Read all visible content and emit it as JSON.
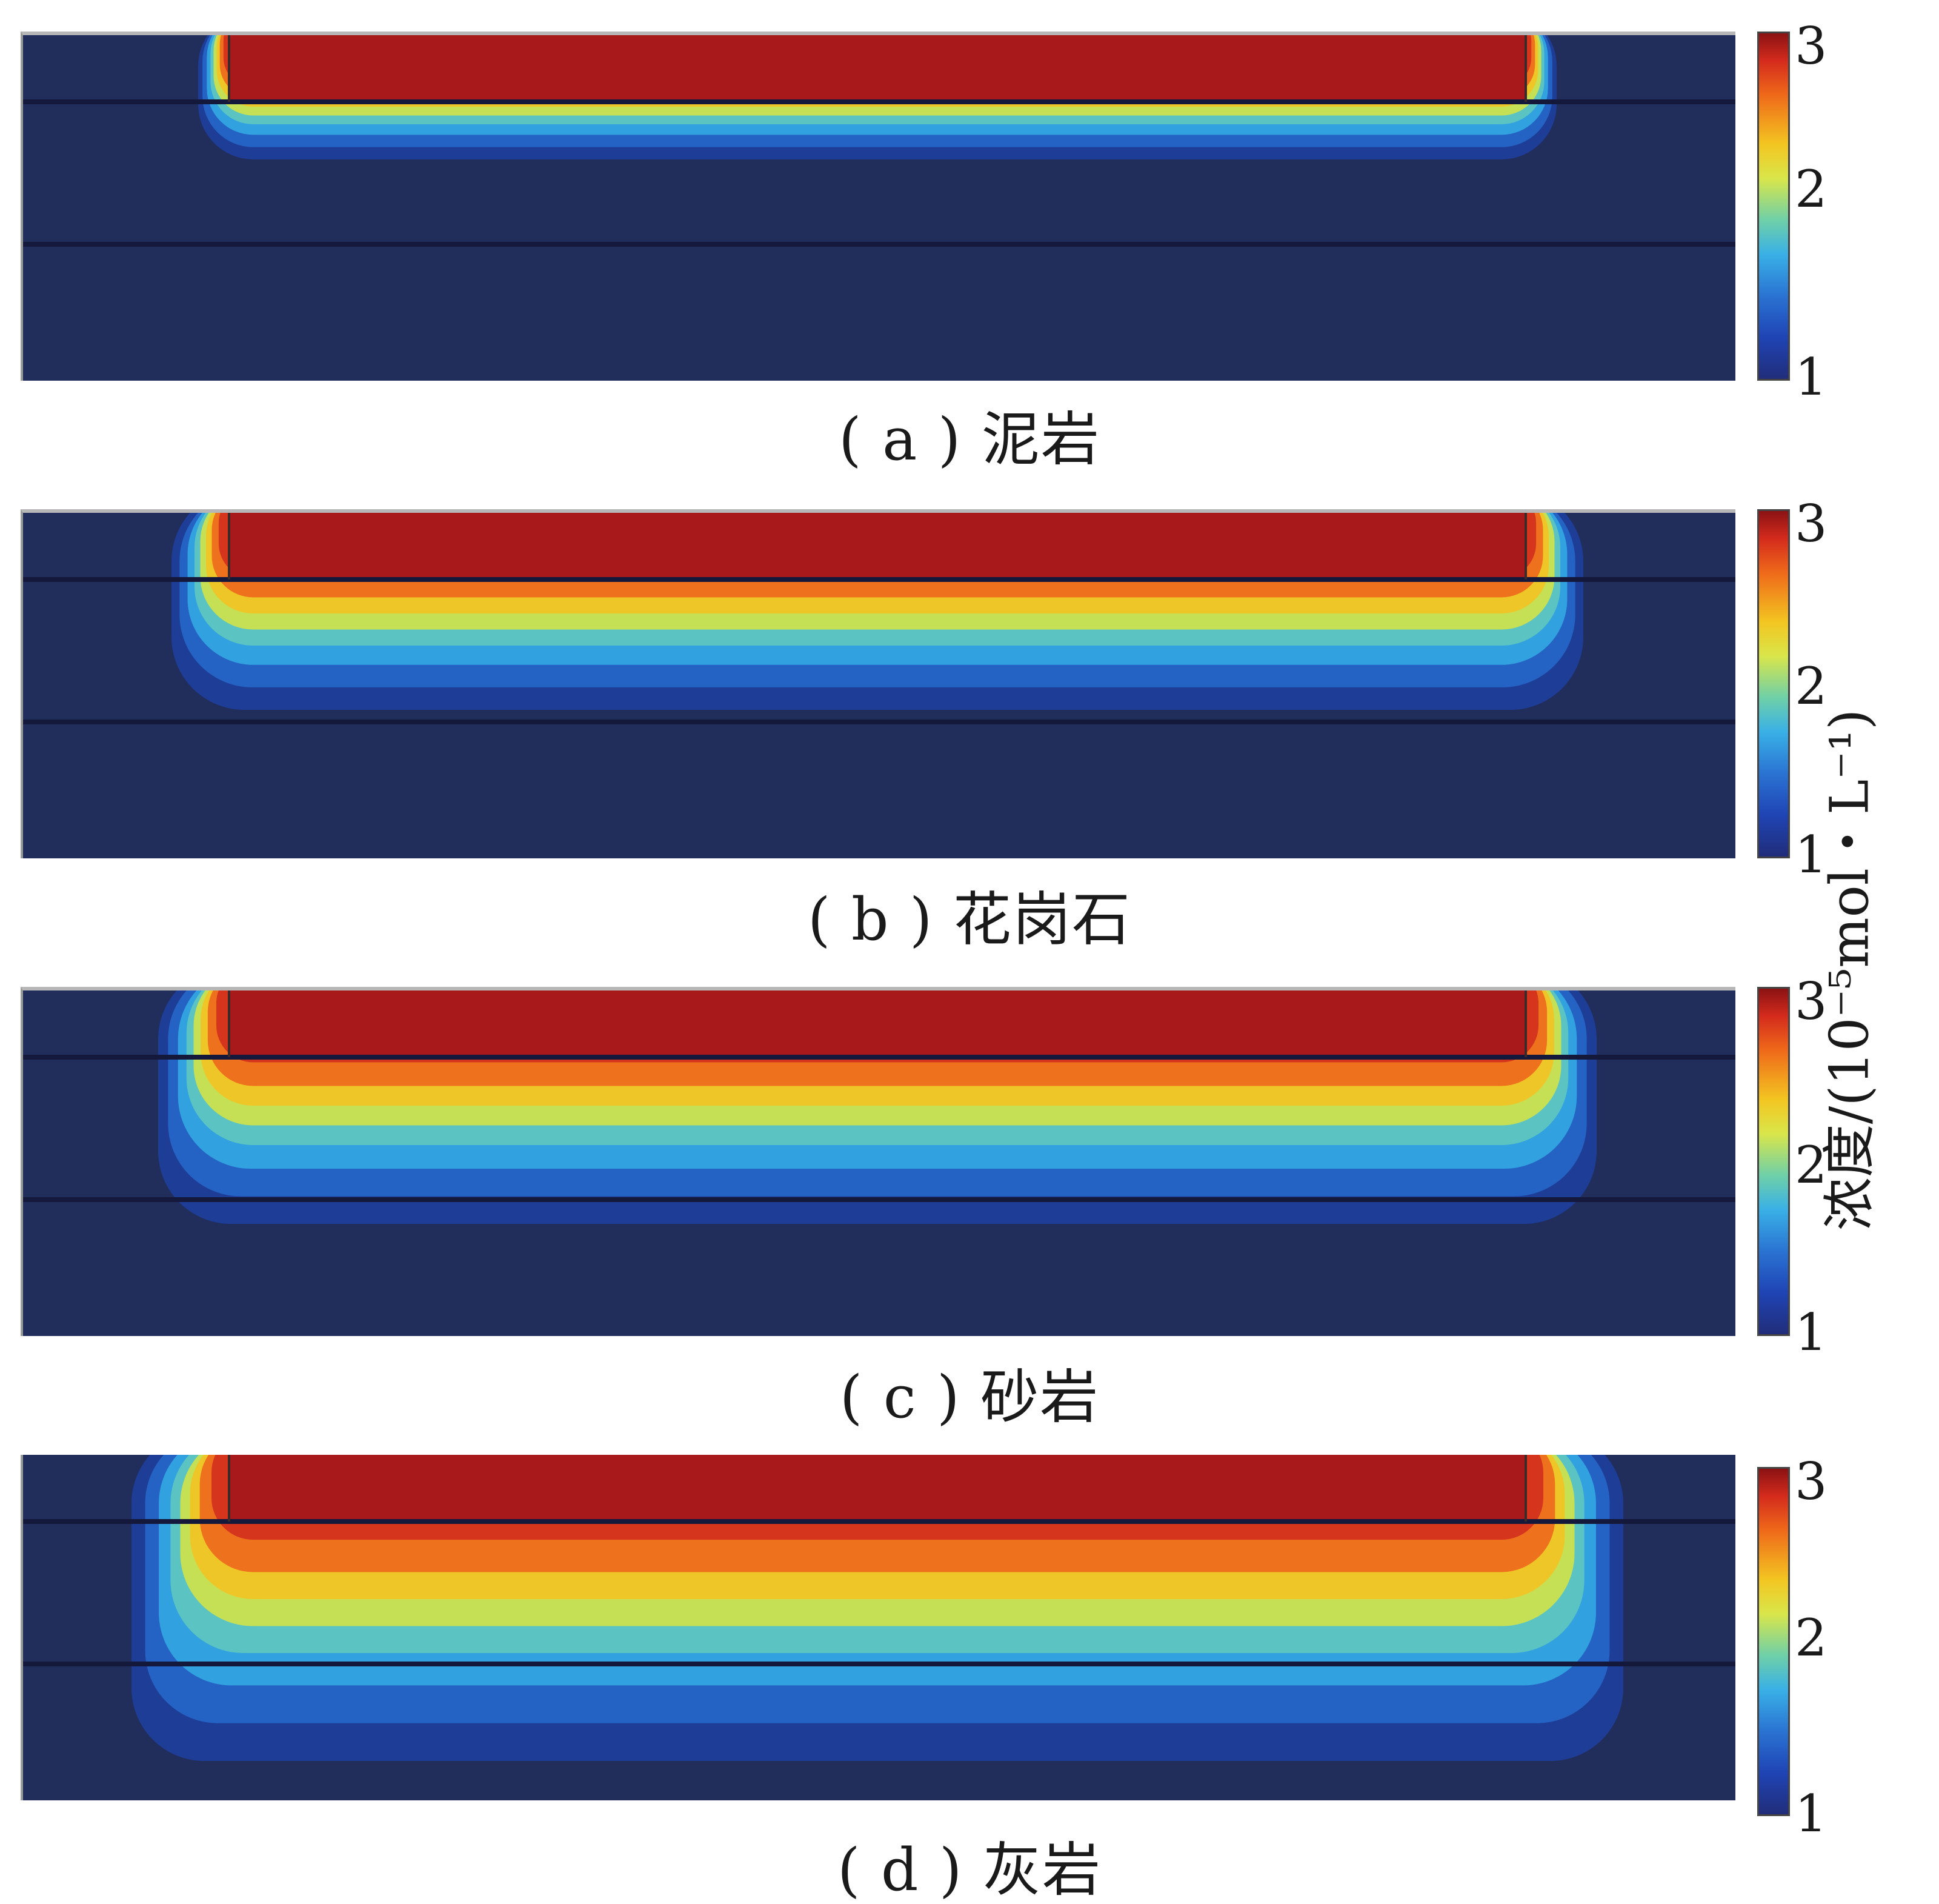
{
  "chart_data": {
    "type": "heatmap",
    "colorbar": {
      "label": "浓度/(10⁻⁵mol・L⁻¹)",
      "ticks": [
        "3",
        "2",
        "1"
      ],
      "range": [
        1,
        3
      ],
      "colormap": "jet"
    },
    "panels": [
      {
        "caption": "( a ) 泥岩",
        "spread": 0.6
      },
      {
        "caption": "( b ) 花岗石",
        "spread": 1.4
      },
      {
        "caption": "( c ) 砂岩",
        "spread": 1.8
      },
      {
        "caption": "( d ) 灰岩",
        "spread": 2.6
      }
    ]
  }
}
